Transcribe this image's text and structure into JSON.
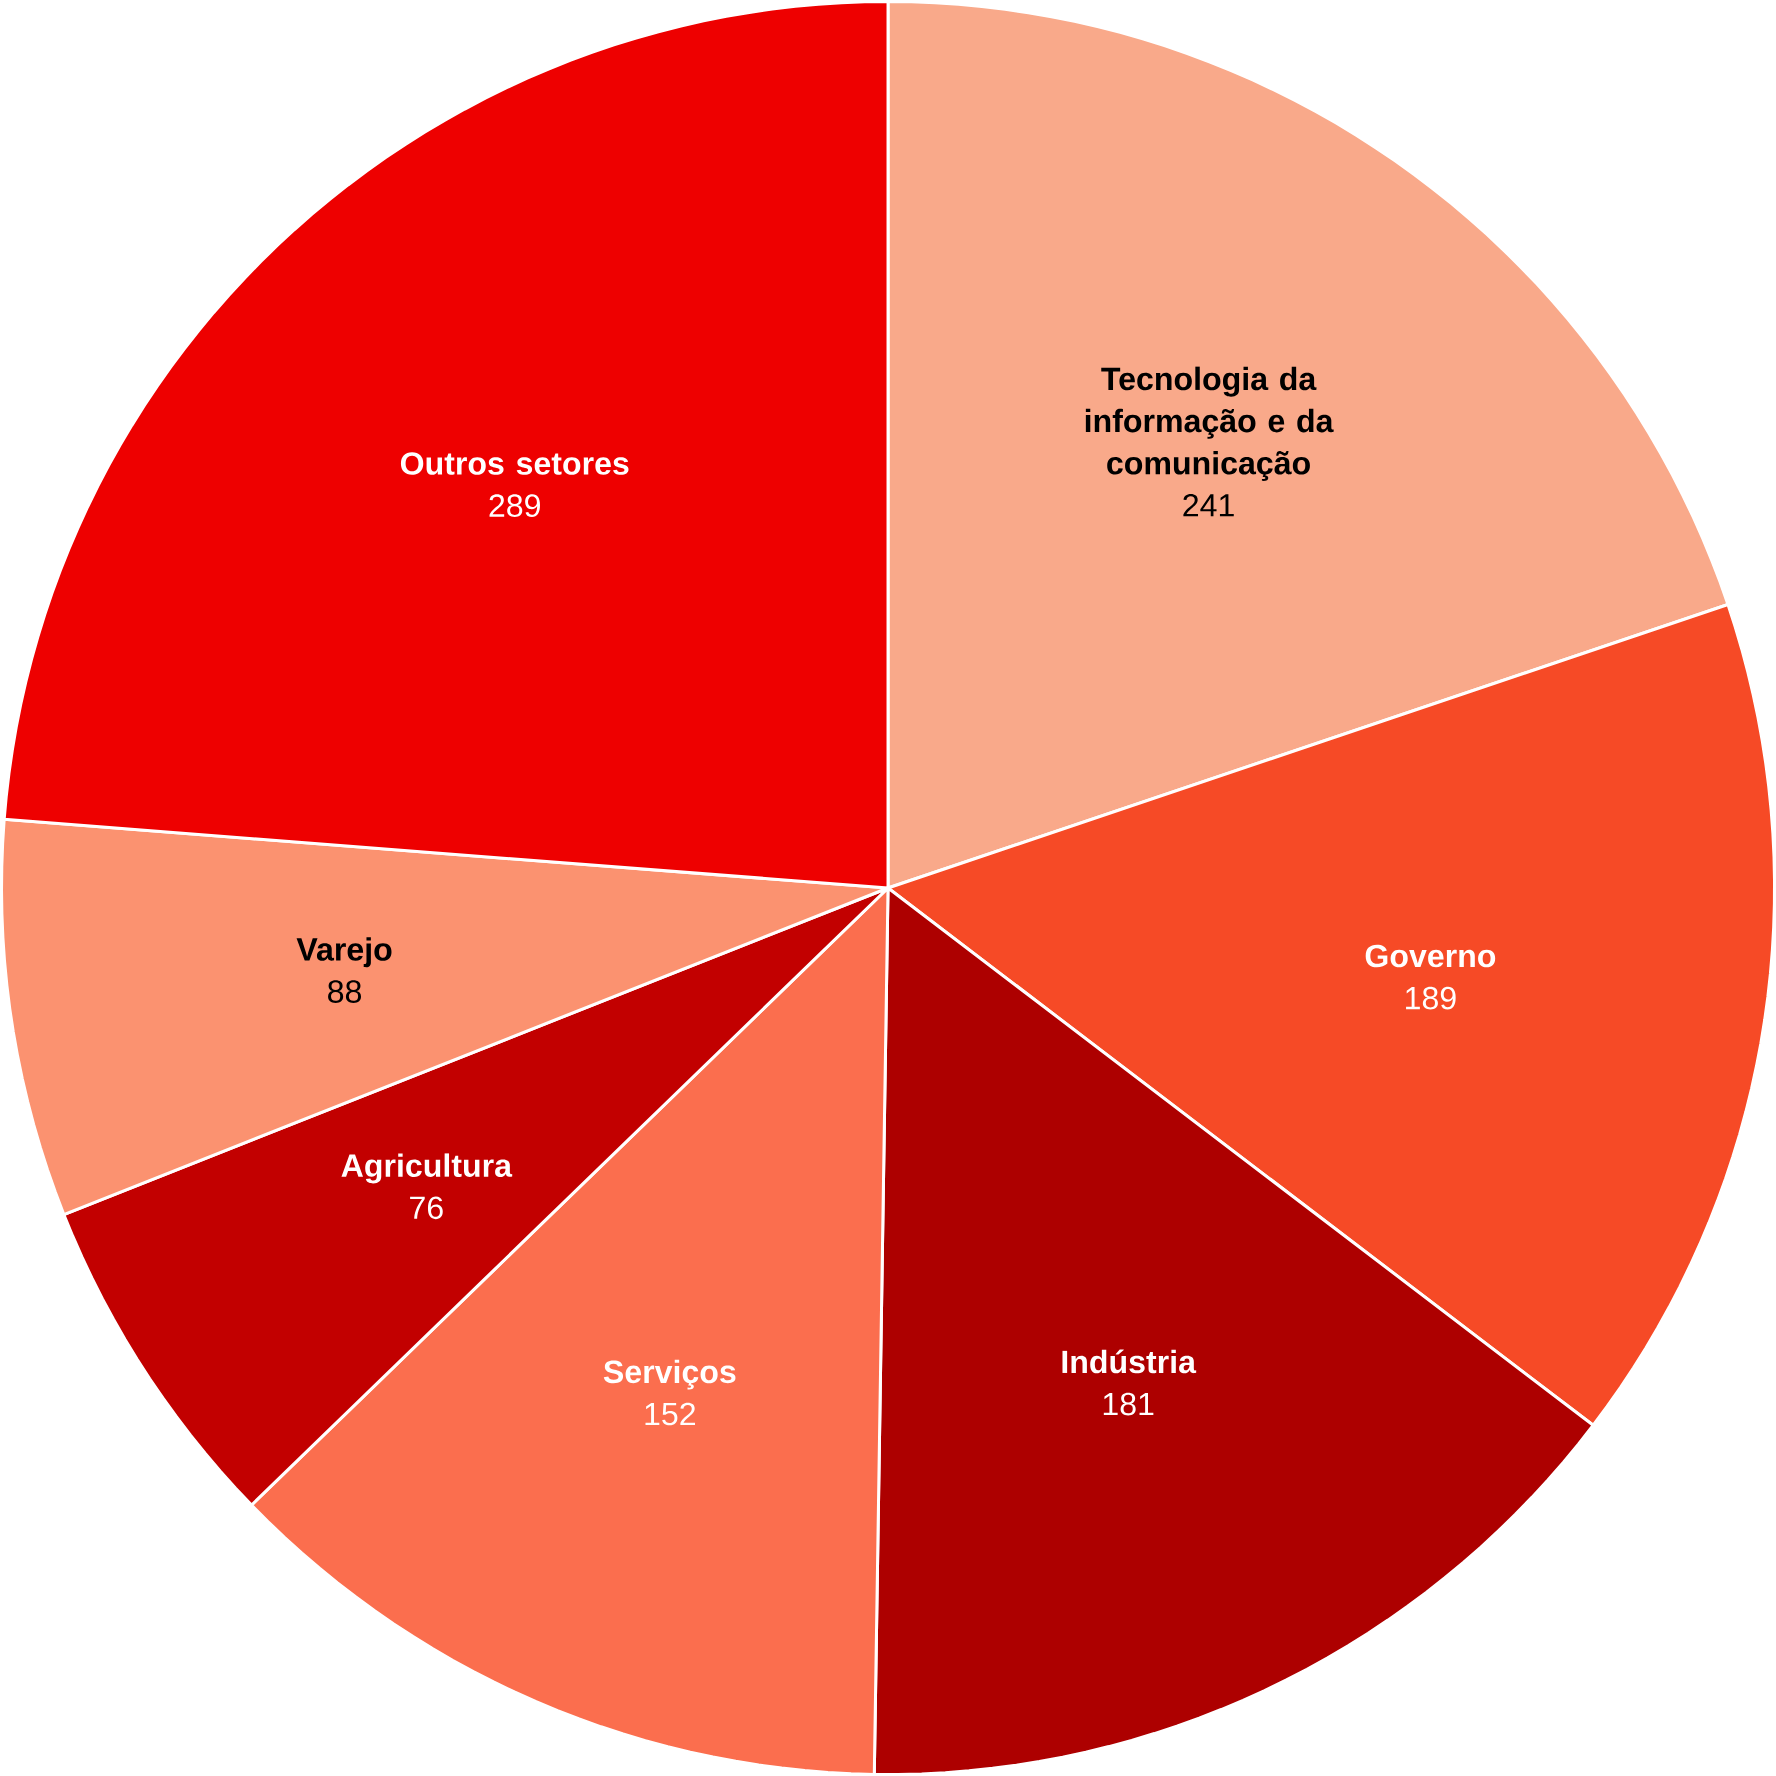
{
  "chart_data": {
    "type": "pie",
    "categories": [
      "Tecnologia da informação e da comunicação",
      "Governo",
      "Indústria",
      "Serviços",
      "Agricultura",
      "Varejo",
      "Outros setores"
    ],
    "values": [
      241,
      189,
      181,
      152,
      76,
      88,
      289
    ],
    "colors": [
      "#f9a98a",
      "#f64a26",
      "#ad0000",
      "#fb6e4e",
      "#c20000",
      "#fb9270",
      "#ee0000"
    ],
    "data_labels": true
  }
}
